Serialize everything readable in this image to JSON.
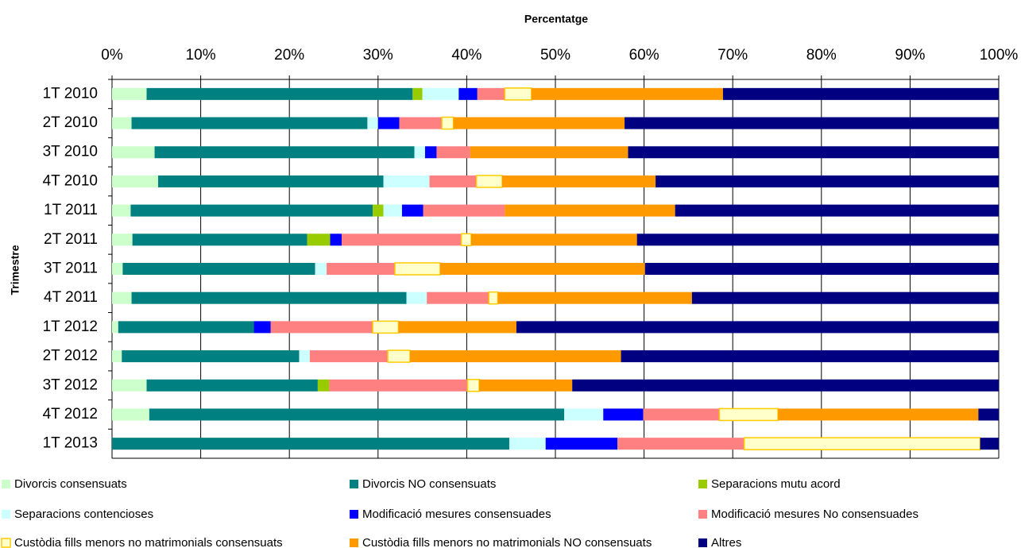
{
  "chart_data": {
    "type": "stacked_barh",
    "title": "Percentatge",
    "ylabel": "Trimestre",
    "categories": [
      "1T 2010",
      "2T 2010",
      "3T 2010",
      "4T 2010",
      "1T 2011",
      "2T 2011",
      "3T 2011",
      "4T 2011",
      "1T 2012",
      "2T 2012",
      "3T 2012",
      "4T 2012",
      "1T 2013"
    ],
    "xlim": [
      0,
      100
    ],
    "xticks": [
      {
        "value": 0,
        "label": "0%"
      },
      {
        "value": 10,
        "label": "10%"
      },
      {
        "value": 20,
        "label": "20%"
      },
      {
        "value": 30,
        "label": "30%"
      },
      {
        "value": 40,
        "label": "40%"
      },
      {
        "value": 50,
        "label": "50%"
      },
      {
        "value": 60,
        "label": "60%"
      },
      {
        "value": 70,
        "label": "70%"
      },
      {
        "value": 80,
        "label": "80%"
      },
      {
        "value": 90,
        "label": "90%"
      },
      {
        "value": 100,
        "label": "100%"
      }
    ],
    "grid": true,
    "legend": "bottom",
    "series": [
      {
        "name": "Divorcis consensuats",
        "color": "#ccffcc",
        "values": [
          3.9,
          2.2,
          4.8,
          5.2,
          2.1,
          2.3,
          1.2,
          2.2,
          0.7,
          1.1,
          3.9,
          4.2,
          0
        ]
      },
      {
        "name": "Divorcis NO consensuats",
        "color": "#008080",
        "values": [
          30.0,
          26.6,
          29.3,
          25.4,
          27.3,
          19.7,
          21.7,
          31.0,
          15.3,
          20.0,
          19.3,
          46.8,
          44.8
        ]
      },
      {
        "name": "Separacions mutu acord",
        "color": "#99cc00",
        "values": [
          1.1,
          0,
          0,
          0,
          1.2,
          2.6,
          0,
          0,
          0,
          0,
          1.3,
          0,
          0
        ]
      },
      {
        "name": "Separacions contencioses",
        "color": "#ccffff",
        "values": [
          4.1,
          1.2,
          1.2,
          5.2,
          2.1,
          0,
          1.3,
          2.3,
          0,
          1.2,
          0,
          4.4,
          4.1
        ]
      },
      {
        "name": "Modificació mesures consensuades",
        "color": "#0000ff",
        "values": [
          2.1,
          2.4,
          1.3,
          0,
          2.4,
          1.3,
          0,
          0,
          1.9,
          0,
          0,
          4.5,
          8.1
        ]
      },
      {
        "name": "Modificació mesures No consensuades",
        "color": "#ff8080",
        "values": [
          3.1,
          4.8,
          3.8,
          5.3,
          9.2,
          13.5,
          7.7,
          7.0,
          11.5,
          8.8,
          15.6,
          8.6,
          14.3
        ]
      },
      {
        "name": "Custòdia fills menors no matrimonials consensuats",
        "color": "#ffffcc",
        "edgecolor": "#ffcc00",
        "values": [
          3.0,
          1.3,
          0,
          2.9,
          0,
          1.1,
          5.1,
          1.0,
          2.9,
          2.5,
          1.3,
          6.6,
          26.6
        ]
      },
      {
        "name": "Custòdia fills menors no matrimonials NO consensuats",
        "color": "#ff9900",
        "values": [
          21.6,
          19.3,
          17.8,
          17.3,
          19.2,
          18.7,
          23.1,
          21.9,
          13.3,
          23.8,
          10.5,
          22.6,
          0
        ]
      },
      {
        "name": "Altres",
        "color": "#000080",
        "values": [
          31.1,
          42.2,
          41.8,
          38.7,
          36.5,
          40.8,
          39.9,
          34.6,
          54.4,
          42.6,
          48.1,
          2.3,
          2.1
        ]
      }
    ]
  }
}
